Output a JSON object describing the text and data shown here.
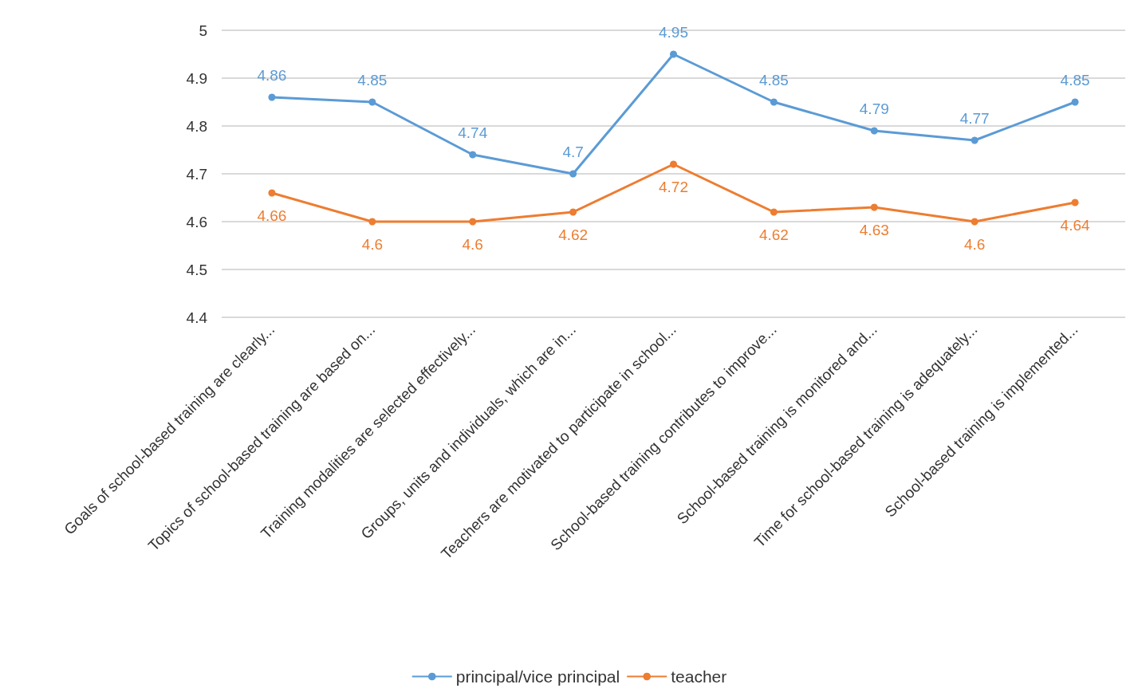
{
  "chart_data": {
    "type": "line",
    "categories": [
      "Goals of school-based training are clearly...",
      "Topics of school-based training are based on...",
      "Training modalities are selected effectively...",
      "Groups, units and individuals, which are in...",
      "Teachers are motivated to participate in school...",
      "School-based training contributes to improve...",
      "School-based training is monitored and...",
      "Time for school-based training is adequately...",
      "School-based training is implemented..."
    ],
    "series": [
      {
        "name": "principal/vice principal",
        "color": "#5b9bd5",
        "values": [
          4.86,
          4.85,
          4.74,
          4.7,
          4.95,
          4.85,
          4.79,
          4.77,
          4.85
        ]
      },
      {
        "name": "teacher",
        "color": "#ed7d31",
        "values": [
          4.66,
          4.6,
          4.6,
          4.62,
          4.72,
          4.62,
          4.63,
          4.6,
          4.64
        ]
      }
    ],
    "ylim": [
      4.4,
      5
    ],
    "yticks": [
      4.4,
      4.5,
      4.6,
      4.7,
      4.8,
      4.9,
      5
    ],
    "grid": "y",
    "legend": "bottom",
    "marker": "circle",
    "line_style": "solid",
    "data_labels": true
  }
}
